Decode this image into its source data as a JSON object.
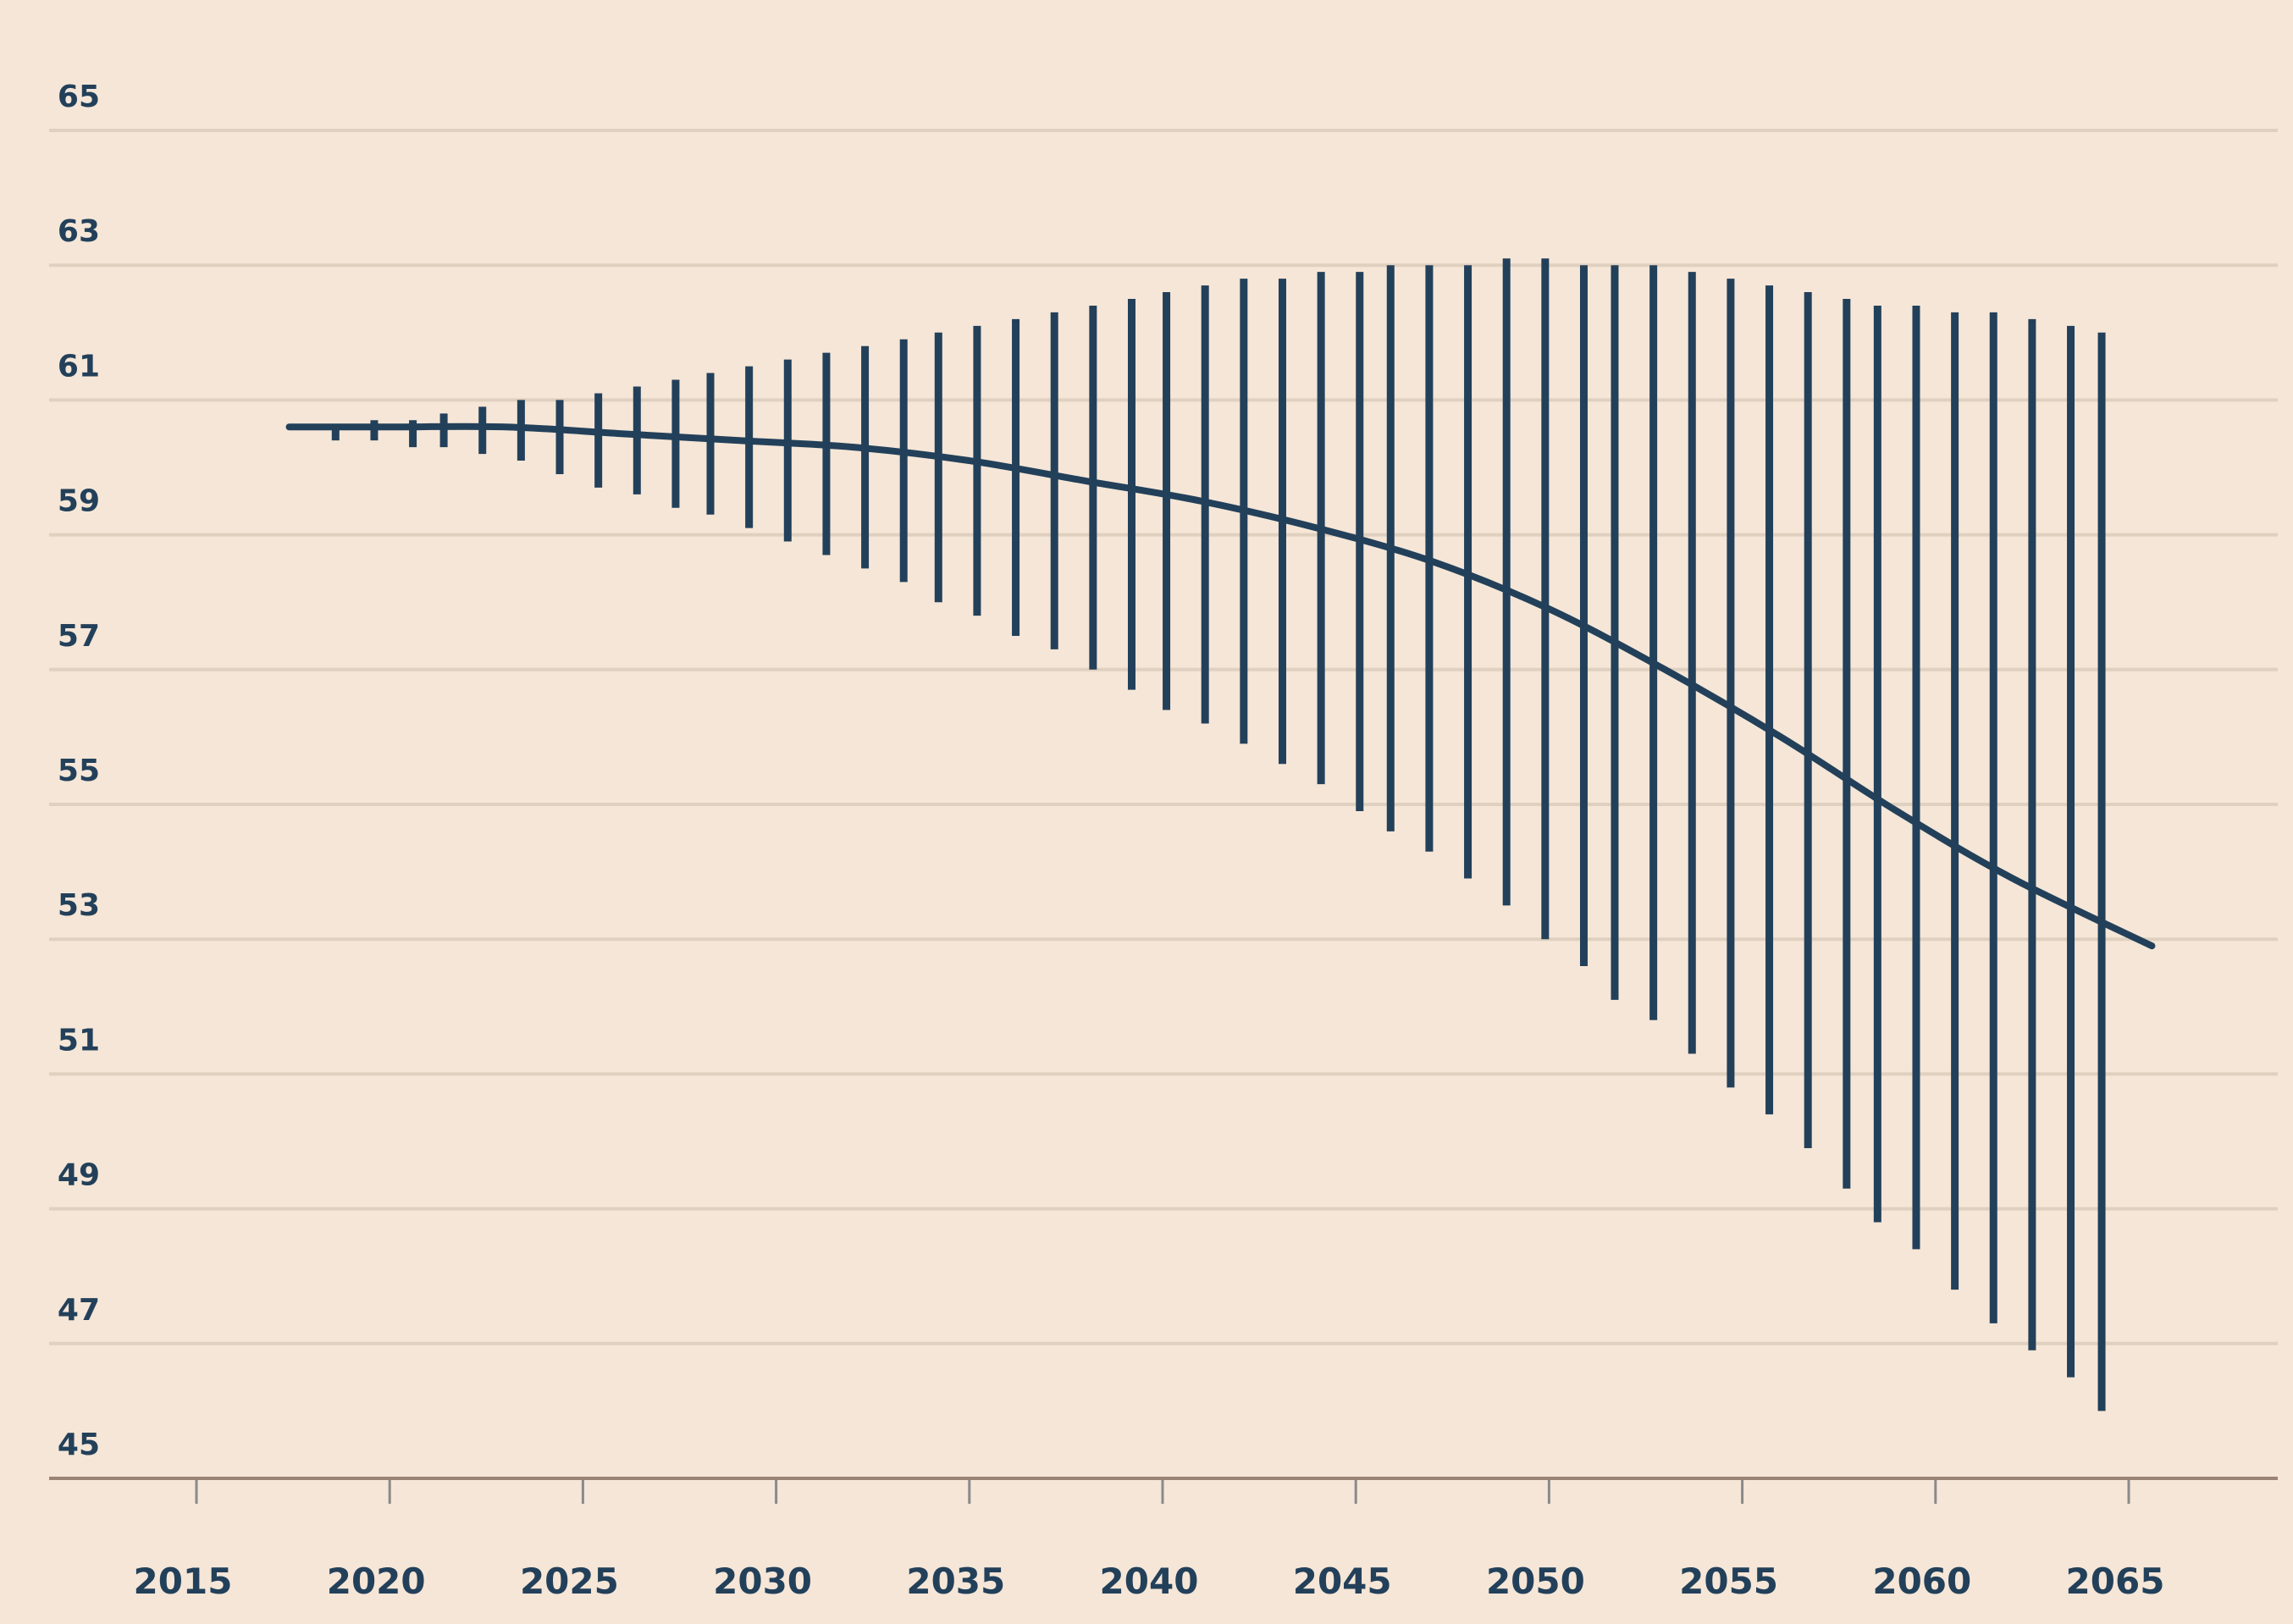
{
  "chart_data": {
    "type": "line",
    "title": "",
    "xlabel": "",
    "ylabel": "",
    "xlim": [
      2013.3,
      2069.2
    ],
    "ylim": [
      45,
      65
    ],
    "grid": true,
    "colors": {
      "background": "#f5e6d7",
      "ink": "#23405a",
      "grid": "#e0d0c0",
      "axis": "#9a8474",
      "tick": "#8a8a8a"
    },
    "y_ticks": [
      "45",
      "47",
      "49",
      "51",
      "53",
      "55",
      "57",
      "59",
      "61",
      "63",
      "65"
    ],
    "x_ticks": [
      "2015",
      "2020",
      "2025",
      "2030",
      "2035",
      "2040",
      "2045",
      "2050",
      "2055",
      "2060",
      "2065"
    ],
    "central_line": {
      "x": [
        2017.4,
        2020,
        2023,
        2026,
        2029,
        2032,
        2035,
        2038,
        2041,
        2044,
        2047,
        2050,
        2053,
        2056,
        2059,
        2062,
        2065.6
      ],
      "y": [
        60.6,
        60.6,
        60.6,
        60.5,
        60.4,
        60.3,
        60.1,
        59.8,
        59.5,
        59.1,
        58.6,
        57.9,
        57.0,
        56.0,
        54.9,
        53.9,
        52.9
      ]
    },
    "ranges": {
      "x": [
        2018.6,
        2019.6,
        2020.6,
        2021.4,
        2022.4,
        2023.4,
        2024.4,
        2025.4,
        2026.4,
        2027.4,
        2028.3,
        2029.3,
        2030.3,
        2031.3,
        2032.3,
        2033.3,
        2034.2,
        2035.2,
        2036.2,
        2037.2,
        2038.2,
        2039.2,
        2040.1,
        2041.1,
        2042.1,
        2043.1,
        2044.1,
        2045.1,
        2045.9,
        2046.9,
        2047.9,
        2048.9,
        2049.9,
        2050.9,
        2051.7,
        2052.7,
        2053.7,
        2054.7,
        2055.7,
        2056.7,
        2057.7,
        2058.5,
        2059.5,
        2060.5,
        2061.5,
        2062.5,
        2063.5,
        2064.3
      ],
      "high": [
        60.6,
        60.7,
        60.7,
        60.8,
        60.9,
        61.0,
        61.0,
        61.1,
        61.2,
        61.3,
        61.4,
        61.5,
        61.6,
        61.7,
        61.8,
        61.9,
        62.0,
        62.1,
        62.2,
        62.3,
        62.4,
        62.5,
        62.6,
        62.7,
        62.8,
        62.8,
        62.9,
        62.9,
        63.0,
        63.0,
        63.0,
        63.1,
        63.1,
        63.0,
        63.0,
        63.0,
        62.9,
        62.8,
        62.7,
        62.6,
        62.5,
        62.4,
        62.4,
        62.3,
        62.3,
        62.2,
        62.1,
        62.0
      ],
      "low": [
        60.4,
        60.4,
        60.3,
        60.3,
        60.2,
        60.1,
        59.9,
        59.7,
        59.6,
        59.4,
        59.3,
        59.1,
        58.9,
        58.7,
        58.5,
        58.3,
        58.0,
        57.8,
        57.5,
        57.3,
        57.0,
        56.7,
        56.4,
        56.2,
        55.9,
        55.6,
        55.3,
        54.9,
        54.6,
        54.3,
        53.9,
        53.5,
        53.0,
        52.6,
        52.1,
        51.8,
        51.3,
        50.8,
        50.4,
        49.9,
        49.3,
        48.8,
        48.4,
        47.8,
        47.3,
        46.9,
        46.5,
        46.0
      ]
    }
  }
}
